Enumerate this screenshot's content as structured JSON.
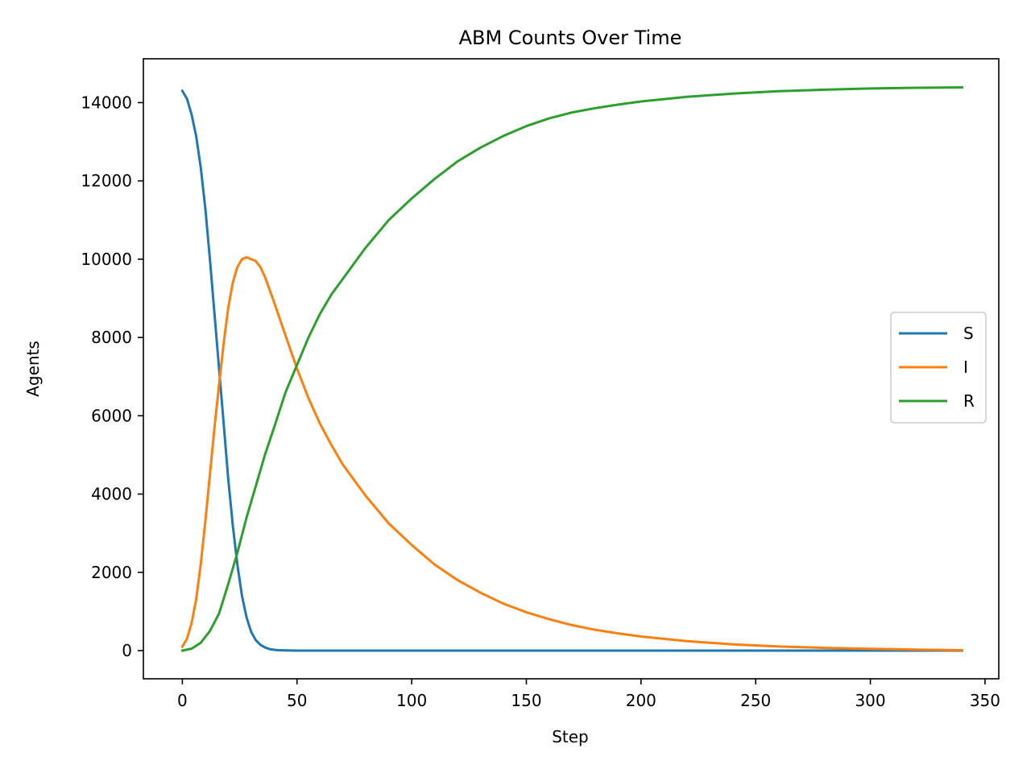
{
  "chart_data": {
    "type": "line",
    "title": "ABM Counts Over Time",
    "xlabel": "Step",
    "ylabel": "Agents",
    "xlim": [
      -17,
      356
    ],
    "ylim": [
      -720,
      15120
    ],
    "xticks": [
      0,
      50,
      100,
      150,
      200,
      250,
      300,
      350
    ],
    "yticks": [
      0,
      2000,
      4000,
      6000,
      8000,
      10000,
      12000,
      14000
    ],
    "grid": false,
    "legend_position": "center-right",
    "series": [
      {
        "name": "S",
        "color": "#1f77b4",
        "x": [
          0,
          2,
          4,
          6,
          8,
          10,
          12,
          14,
          16,
          18,
          20,
          22,
          24,
          26,
          28,
          30,
          32,
          34,
          36,
          38,
          40,
          42,
          45,
          50,
          60,
          100,
          150,
          200,
          250,
          300,
          340
        ],
        "y": [
          14300,
          14100,
          13700,
          13150,
          12350,
          11300,
          10000,
          8600,
          7200,
          5800,
          4400,
          3200,
          2200,
          1400,
          850,
          480,
          270,
          150,
          80,
          40,
          20,
          10,
          5,
          0,
          0,
          0,
          0,
          0,
          0,
          0,
          0
        ]
      },
      {
        "name": "I",
        "color": "#ff7f0e",
        "x": [
          0,
          2,
          4,
          6,
          8,
          10,
          12,
          14,
          16,
          18,
          20,
          22,
          24,
          26,
          28,
          30,
          32,
          34,
          36,
          40,
          45,
          50,
          55,
          60,
          65,
          70,
          80,
          90,
          100,
          110,
          120,
          130,
          140,
          150,
          160,
          170,
          180,
          190,
          200,
          220,
          240,
          260,
          280,
          300,
          320,
          340
        ],
        "y": [
          100,
          300,
          700,
          1300,
          2200,
          3300,
          4500,
          5700,
          6800,
          7850,
          8750,
          9400,
          9800,
          10000,
          10050,
          10000,
          9950,
          9800,
          9550,
          8900,
          8050,
          7200,
          6450,
          5800,
          5250,
          4750,
          3950,
          3250,
          2700,
          2200,
          1800,
          1480,
          1200,
          980,
          800,
          650,
          530,
          440,
          360,
          240,
          160,
          105,
          70,
          45,
          25,
          10
        ]
      },
      {
        "name": "R",
        "color": "#2ca02c",
        "x": [
          0,
          4,
          8,
          12,
          16,
          20,
          24,
          28,
          32,
          36,
          40,
          45,
          50,
          55,
          60,
          65,
          70,
          75,
          80,
          90,
          100,
          110,
          120,
          130,
          140,
          150,
          160,
          170,
          180,
          190,
          200,
          220,
          240,
          260,
          280,
          300,
          320,
          340
        ],
        "y": [
          0,
          50,
          200,
          500,
          950,
          1700,
          2500,
          3400,
          4200,
          5000,
          5700,
          6600,
          7300,
          8000,
          8600,
          9100,
          9500,
          9900,
          10300,
          11000,
          11550,
          12050,
          12500,
          12850,
          13150,
          13400,
          13600,
          13750,
          13860,
          13950,
          14030,
          14150,
          14230,
          14290,
          14330,
          14360,
          14380,
          14390
        ]
      }
    ]
  }
}
